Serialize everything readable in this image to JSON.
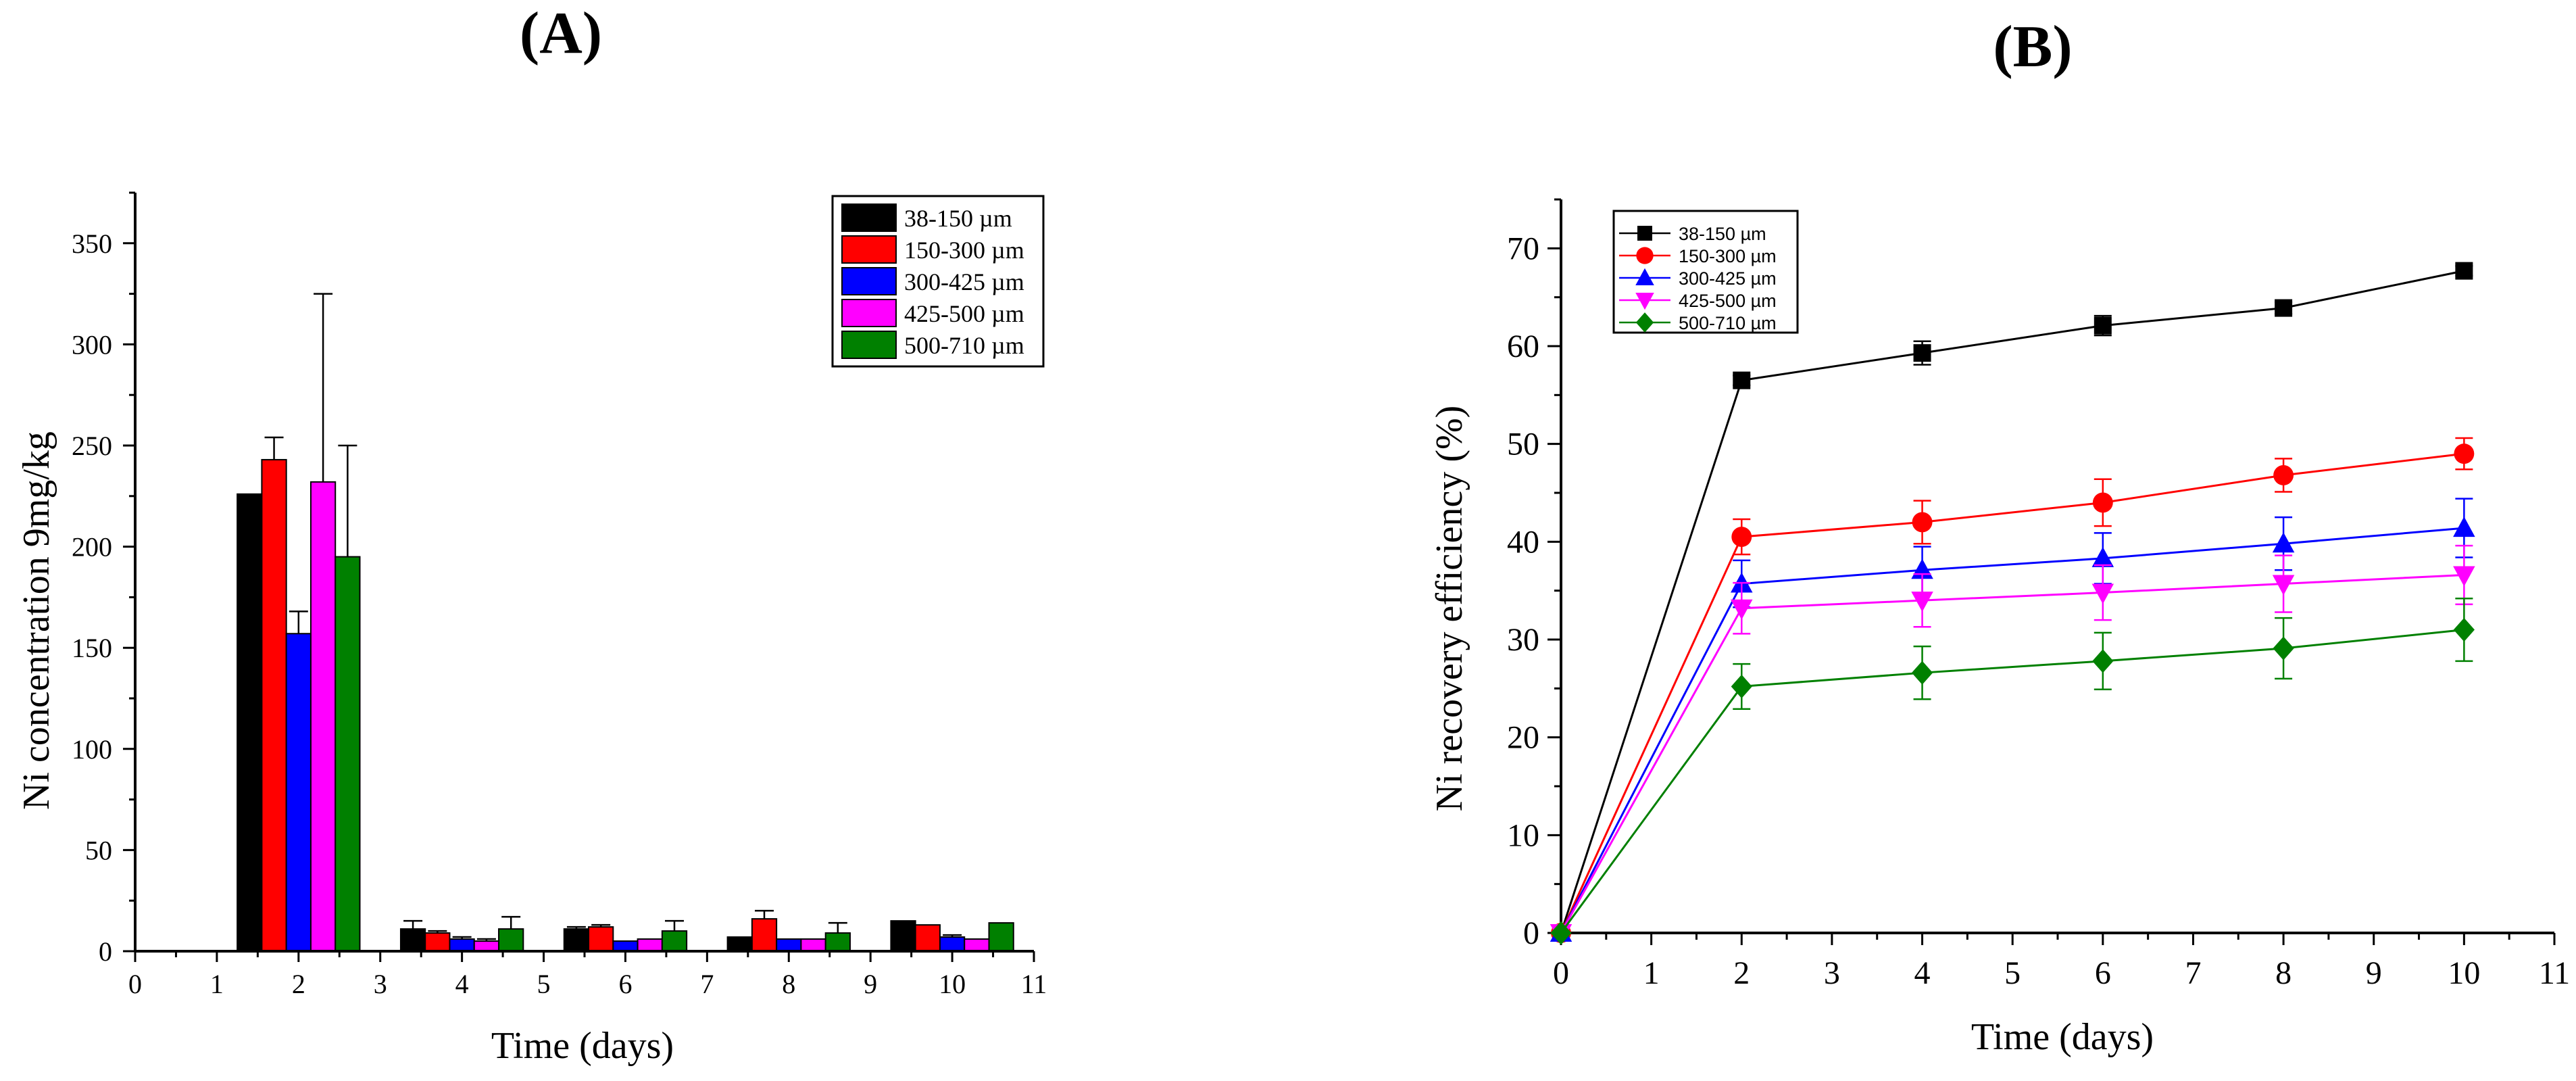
{
  "chart_data": [
    {
      "type": "bar",
      "panel_label": "(A)",
      "xlabel": "Time (days)",
      "ylabel": "Ni concentration 9mg/kg",
      "xlim": [
        0,
        11
      ],
      "ylim": [
        0,
        375
      ],
      "xticks": [
        "0",
        "1",
        "2",
        "3",
        "4",
        "5",
        "6",
        "7",
        "8",
        "9",
        "10",
        "11"
      ],
      "yticks": [
        "0",
        "50",
        "100",
        "150",
        "200",
        "250",
        "300",
        "350"
      ],
      "categories": [
        2,
        4,
        6,
        8,
        10
      ],
      "series": [
        {
          "name": "38-150 µm",
          "color": "#000000",
          "values": [
            226,
            11,
            11,
            7,
            15
          ],
          "errors": [
            0,
            4,
            1,
            0,
            0
          ]
        },
        {
          "name": "150-300 µm",
          "color": "#ff0000",
          "values": [
            243,
            9,
            12,
            16,
            13
          ],
          "errors": [
            11,
            1,
            1,
            4,
            0
          ]
        },
        {
          "name": "300-425 µm",
          "color": "#0000ff",
          "values": [
            157,
            6,
            5,
            6,
            7
          ],
          "errors": [
            11,
            1,
            0,
            0,
            1
          ]
        },
        {
          "name": "425-500 µm",
          "color": "#ff00ff",
          "values": [
            232,
            5,
            6,
            6,
            6
          ],
          "errors": [
            93,
            1,
            0,
            0,
            0
          ]
        },
        {
          "name": "500-710 µm",
          "color": "#008000",
          "values": [
            195,
            11,
            10,
            9,
            14
          ],
          "errors": [
            55,
            6,
            5,
            5,
            0
          ]
        }
      ]
    },
    {
      "type": "line",
      "panel_label": "(B)",
      "xlabel": "Time (days)",
      "ylabel": "Ni recovery efficiency (%)",
      "xlim": [
        0,
        11
      ],
      "ylim": [
        0,
        75
      ],
      "xticks": [
        "0",
        "1",
        "2",
        "3",
        "4",
        "5",
        "6",
        "7",
        "8",
        "9",
        "10",
        "11"
      ],
      "yticks": [
        "0",
        "10",
        "20",
        "30",
        "40",
        "50",
        "60",
        "70"
      ],
      "x": [
        0,
        2,
        4,
        6,
        8,
        10
      ],
      "series": [
        {
          "name": "38-150 µm",
          "color": "#000000",
          "marker": "square",
          "values": [
            0,
            56.5,
            59.3,
            62.1,
            63.9,
            67.7
          ],
          "errors": [
            0,
            0.5,
            1.2,
            1.0,
            0.6,
            0.5
          ]
        },
        {
          "name": "150-300 µm",
          "color": "#ff0000",
          "marker": "circle",
          "values": [
            0,
            40.5,
            42.0,
            44.0,
            46.8,
            49.0
          ],
          "errors": [
            0,
            1.8,
            2.2,
            2.4,
            1.7,
            1.6
          ]
        },
        {
          "name": "300-425 µm",
          "color": "#0000ff",
          "marker": "triangle-up",
          "values": [
            0,
            35.7,
            37.1,
            38.3,
            39.8,
            41.4
          ],
          "errors": [
            0,
            2.4,
            2.4,
            2.6,
            2.7,
            3.0
          ]
        },
        {
          "name": "425-500  µm",
          "color": "#ff00ff",
          "marker": "triangle-down",
          "values": [
            0,
            33.2,
            34.0,
            34.8,
            35.7,
            36.6
          ],
          "errors": [
            0,
            2.6,
            2.7,
            2.8,
            2.9,
            3.0
          ]
        },
        {
          "name": "500-710 µm",
          "color": "#008000",
          "marker": "diamond",
          "values": [
            0,
            25.2,
            26.6,
            27.8,
            29.1,
            31.0
          ],
          "errors": [
            0,
            2.3,
            2.7,
            2.9,
            3.1,
            3.2
          ]
        }
      ]
    }
  ]
}
